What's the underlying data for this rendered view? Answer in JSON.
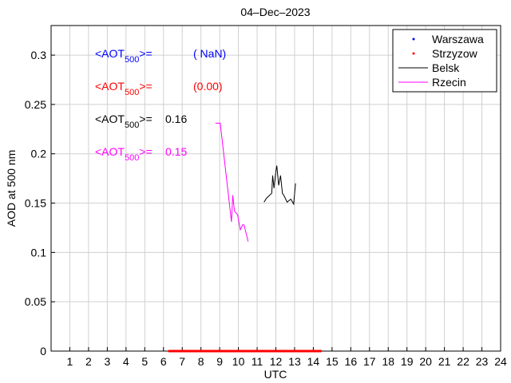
{
  "chart_data": {
    "type": "line",
    "title": "04–Dec–2023",
    "xlabel": "UTC",
    "ylabel": "AOD at 500 nm",
    "xlim": [
      0,
      24
    ],
    "ylim": [
      0,
      0.33
    ],
    "xticks": [
      1,
      2,
      3,
      4,
      5,
      6,
      7,
      8,
      9,
      10,
      11,
      12,
      13,
      14,
      15,
      16,
      17,
      18,
      19,
      20,
      21,
      22,
      23,
      24
    ],
    "yticks": [
      0,
      0.05,
      0.1,
      0.15,
      0.2,
      0.25,
      0.3
    ],
    "ytick_labels": [
      "0",
      "0.05",
      "0.1",
      "0.15",
      "0.2",
      "0.25",
      "0.3"
    ],
    "grid": true,
    "legend_position": "top-right",
    "series": [
      {
        "name": "Warszawa",
        "style": "dots",
        "color": "#0000ff",
        "points": []
      },
      {
        "name": "Strzyzow",
        "style": "dots",
        "color": "#ff0000",
        "points": [
          [
            6.3,
            0
          ],
          [
            6.8,
            0
          ],
          [
            7.3,
            0
          ],
          [
            7.8,
            0
          ],
          [
            8.3,
            0
          ],
          [
            8.8,
            0
          ],
          [
            9.3,
            0
          ],
          [
            9.8,
            0
          ],
          [
            10.3,
            0
          ],
          [
            10.8,
            0
          ],
          [
            11.3,
            0
          ],
          [
            11.8,
            0
          ],
          [
            12.3,
            0
          ],
          [
            12.8,
            0
          ],
          [
            13.3,
            0
          ],
          [
            13.8,
            0
          ],
          [
            14.4,
            0
          ]
        ]
      },
      {
        "name": "Belsk",
        "style": "line",
        "color": "#000000",
        "points": [
          [
            11.37,
            0.151
          ],
          [
            11.5,
            0.155
          ],
          [
            11.78,
            0.16
          ],
          [
            11.83,
            0.178
          ],
          [
            11.9,
            0.165
          ],
          [
            12.0,
            0.182
          ],
          [
            12.05,
            0.188
          ],
          [
            12.15,
            0.168
          ],
          [
            12.25,
            0.178
          ],
          [
            12.35,
            0.16
          ],
          [
            12.45,
            0.157
          ],
          [
            12.6,
            0.151
          ],
          [
            12.8,
            0.154
          ],
          [
            12.95,
            0.149
          ],
          [
            13.05,
            0.17
          ]
        ]
      },
      {
        "name": "Rzecin",
        "style": "line",
        "color": "#ff00ff",
        "points": [
          [
            8.77,
            0.231
          ],
          [
            9.03,
            0.231
          ],
          [
            9.63,
            0.131
          ],
          [
            9.7,
            0.158
          ],
          [
            9.79,
            0.142
          ],
          [
            9.96,
            0.138
          ],
          [
            10.1,
            0.123
          ],
          [
            10.23,
            0.128
          ],
          [
            10.3,
            0.128
          ],
          [
            10.52,
            0.111
          ]
        ]
      }
    ],
    "annotations": [
      {
        "prefix": "<AOT",
        "sub": "500",
        "suffix": ">=",
        "value": "( NaN)",
        "color": "#0000ff"
      },
      {
        "prefix": "<AOT",
        "sub": "500",
        "suffix": ">=",
        "value": "(0.00)",
        "color": "#ff0000"
      },
      {
        "prefix": "<AOT",
        "sub": "500",
        "suffix": ">=",
        "value": "0.16",
        "color": "#000000"
      },
      {
        "prefix": "<AOT",
        "sub": "500",
        "suffix": ">=",
        "value": "0.15",
        "color": "#ff00ff"
      }
    ]
  }
}
